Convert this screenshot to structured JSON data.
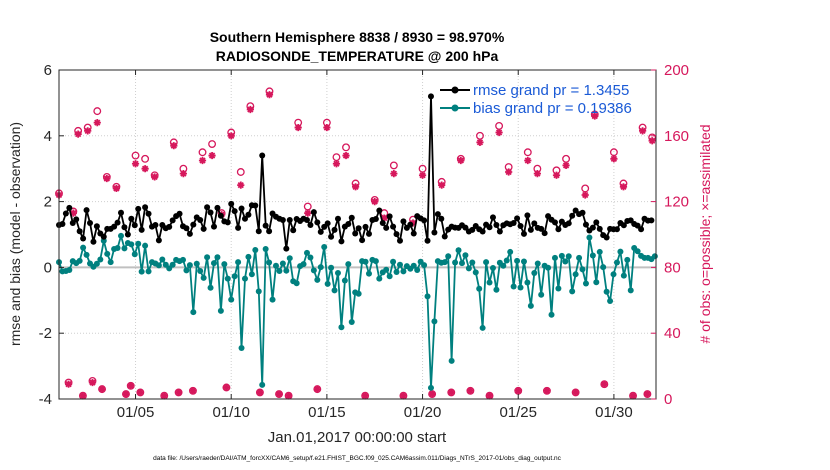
{
  "chart_data": {
    "type": "line",
    "title": "Southern Hemisphere 8838 / 8930 = 98.970%",
    "subtitle": "RADIOSONDE_TEMPERATURE @ 200 hPa",
    "xlabel": "Jan.01,2017 00:00:00 start",
    "ylabel": "rmse and bias (model - observation)",
    "y2label": "# of obs: o=possible; ×=assimilated",
    "footnote": "data file: /Users/raeder/DAI/ATM_forcXX/CAM6_setup/f.e21.FHIST_BGC.f09_025.CAM6assim.011/Diags_NTrS_2017-01/obs_diag_output.nc",
    "xlim": [
      1,
      32.2
    ],
    "ylim": [
      -4,
      6
    ],
    "y2lim": [
      0,
      200
    ],
    "x_ticks": [
      5,
      10,
      15,
      20,
      25,
      30
    ],
    "x_tick_labels": [
      "01/05",
      "01/10",
      "01/15",
      "01/20",
      "01/25",
      "01/30"
    ],
    "y_ticks": [
      -4,
      -2,
      0,
      2,
      4,
      6
    ],
    "y_tick_labels": [
      "-4",
      "-2",
      "0",
      "2",
      "4",
      "6"
    ],
    "y2_ticks": [
      0,
      40,
      80,
      120,
      160,
      200
    ],
    "y2_tick_labels": [
      "0",
      "40",
      "80",
      "120",
      "160",
      "200"
    ],
    "legend_position": "top-right",
    "colors": {
      "rmse": "#000000",
      "bias": "#00807f",
      "obs": "#d6185c",
      "zero_line": "#c0c0c0",
      "label_blue": "#1a5ad6"
    },
    "series": [
      {
        "name": "rmse grand pr = 1.3455",
        "axis": "left",
        "values": [
          1.29,
          1.32,
          1.64,
          1.81,
          1.35,
          1.46,
          1.1,
          0.88,
          1.74,
          1.35,
          0.78,
          1.25,
          1.03,
          0.93,
          1.17,
          1.17,
          1.24,
          1.36,
          1.66,
          1.22,
          1.0,
          1.48,
          1.28,
          1.78,
          1.14,
          1.83,
          1.63,
          1.24,
          1.29,
          0.82,
          1.29,
          1.19,
          1.23,
          1.43,
          1.56,
          1.63,
          1.25,
          1.19,
          1.02,
          1.3,
          1.52,
          1.44,
          1.17,
          1.83,
          1.67,
          1.24,
          1.81,
          1.57,
          1.4,
          1.37,
          1.93,
          1.71,
          1.2,
          1.79,
          1.48,
          1.6,
          1.89,
          1.88,
          1.1,
          3.4,
          1.27,
          1.1,
          1.64,
          1.54,
          1.48,
          1.44,
          0.57,
          1.44,
          1.13,
          1.47,
          1.41,
          1.48,
          1.44,
          1.29,
          1.68,
          1.37,
          1.08,
          1.23,
          1.34,
          0.93,
          1.14,
          1.48,
          0.79,
          1.24,
          1.32,
          1.51,
          1.03,
          1.19,
          0.83,
          1.23,
          1.02,
          1.44,
          1.47,
          1.73,
          1.35,
          1.2,
          1.55,
          1.24,
          1.01,
          0.81,
          1.4,
          1.2,
          1.3,
          1.03,
          1.56,
          1.49,
          1.43,
          0.81,
          5.2,
          1.06,
          1.62,
          1.48,
          0.94,
          1.15,
          1.24,
          1.21,
          1.2,
          1.28,
          1.21,
          1.09,
          1.14,
          1.26,
          1.16,
          1.09,
          1.3,
          1.22,
          1.52,
          1.29,
          1.09,
          1.28,
          1.34,
          1.31,
          1.35,
          1.49,
          1.26,
          1.02,
          1.58,
          1.14,
          1.34,
          1.2,
          1.17,
          1.04,
          1.56,
          1.45,
          1.37,
          1.16,
          1.39,
          1.29,
          1.34,
          1.57,
          1.73,
          1.62,
          1.66,
          1.3,
          1.12,
          1.21,
          1.37,
          1.17,
          0.98,
          0.91,
          1.17,
          1.16,
          1.16,
          1.35,
          1.28,
          1.41,
          1.43,
          1.32,
          1.27,
          1.16,
          1.48,
          1.42,
          1.43
        ]
      },
      {
        "name": "bias grand pr = 0.19386",
        "axis": "left",
        "values": [
          0.16,
          -0.12,
          -0.11,
          -0.08,
          0.19,
          0.13,
          0.2,
          0.6,
          0.38,
          0.12,
          0.02,
          0.11,
          0.24,
          0.81,
          0.41,
          0.16,
          0.56,
          0.59,
          0.96,
          0.58,
          0.74,
          0.7,
          0.4,
          0.72,
          -0.13,
          0.66,
          -0.12,
          0.16,
          0.12,
          0.06,
          0.24,
          0.08,
          -0.03,
          0.08,
          0.23,
          0.19,
          0.23,
          -0.09,
          0.07,
          -1.36,
          0.11,
          -0.11,
          -0.32,
          0.31,
          -0.62,
          0.13,
          0.31,
          -1.32,
          0.1,
          -0.34,
          -0.98,
          -0.27,
          0.16,
          -2.45,
          -0.34,
          0.32,
          -0.21,
          0.53,
          -0.73,
          -3.57,
          0.56,
          0.15,
          -0.98,
          0.05,
          -0.11,
          0.12,
          -0.1,
          0.28,
          -0.42,
          -0.48,
          0.04,
          0.1,
          0.44,
          0.3,
          -0.09,
          -0.38,
          0.01,
          0.62,
          -0.5,
          -0.01,
          -0.7,
          -0.17,
          -1.82,
          -0.4,
          0.1,
          -1.66,
          -0.76,
          -0.8,
          0.19,
          0.17,
          -0.19,
          0.23,
          0.19,
          -0.34,
          -0.15,
          -0.07,
          -0.27,
          0.17,
          -0.14,
          0.08,
          -0.12,
          0.04,
          -0.04,
          0.05,
          -0.08,
          0.17,
          0.07,
          -0.88,
          -3.66,
          -1.64,
          0.19,
          0.14,
          0.16,
          0.34,
          -2.84,
          0.15,
          0.52,
          0.13,
          0.37,
          -0.03,
          0.15,
          -0.15,
          -0.65,
          -1.84,
          0.16,
          -0.46,
          -0.02,
          -0.68,
          0.14,
          0.05,
          0.21,
          0.47,
          -0.58,
          0.2,
          -0.61,
          0.18,
          -0.46,
          -1.17,
          -0.17,
          0.12,
          -0.83,
          0.05,
          -0.01,
          -1.44,
          0.29,
          -0.64,
          0.35,
          0.18,
          0.34,
          -0.73,
          -0.21,
          0.29,
          -0.06,
          -0.49,
          0.91,
          0.36,
          -0.45,
          0.47,
          0.01,
          -0.74,
          -1.02,
          -0.21,
          0.15,
          0.48,
          -0.25,
          0.23,
          -0.7,
          0.59,
          0.49,
          0.35,
          0.29,
          0.29,
          0.25,
          0.34
        ]
      },
      {
        "name": "# of obs possible",
        "axis": "right",
        "marker": "circle",
        "points": [
          [
            1.0,
            125
          ],
          [
            1.5,
            10
          ],
          [
            1.75,
            114
          ],
          [
            2.0,
            163
          ],
          [
            2.25,
            2
          ],
          [
            2.5,
            165
          ],
          [
            2.75,
            11
          ],
          [
            3.0,
            175
          ],
          [
            3.25,
            6
          ],
          [
            3.5,
            135
          ],
          [
            4.0,
            129
          ],
          [
            4.5,
            3
          ],
          [
            4.75,
            8
          ],
          [
            5.0,
            148
          ],
          [
            5.25,
            4
          ],
          [
            5.5,
            146
          ],
          [
            6.0,
            136
          ],
          [
            6.5,
            2
          ],
          [
            7.0,
            156
          ],
          [
            7.25,
            4
          ],
          [
            7.5,
            140
          ],
          [
            8.0,
            5
          ],
          [
            8.5,
            150
          ],
          [
            9.0,
            155
          ],
          [
            9.5,
            113
          ],
          [
            9.75,
            7
          ],
          [
            10.0,
            162
          ],
          [
            10.5,
            138
          ],
          [
            11.0,
            178
          ],
          [
            11.5,
            4
          ],
          [
            12.0,
            187
          ],
          [
            12.5,
            3
          ],
          [
            13.0,
            2
          ],
          [
            13.5,
            168
          ],
          [
            14.0,
            117
          ],
          [
            14.5,
            6
          ],
          [
            15.0,
            168
          ],
          [
            15.5,
            147
          ],
          [
            16.0,
            153
          ],
          [
            16.5,
            131
          ],
          [
            17.0,
            2
          ],
          [
            17.5,
            121
          ],
          [
            18.0,
            113
          ],
          [
            18.5,
            142
          ],
          [
            19.0,
            2
          ],
          [
            19.5,
            109
          ],
          [
            20.0,
            140
          ],
          [
            20.5,
            3
          ],
          [
            21.0,
            132
          ],
          [
            21.5,
            4
          ],
          [
            22.0,
            146
          ],
          [
            22.5,
            5
          ],
          [
            23.0,
            160
          ],
          [
            23.5,
            2
          ],
          [
            24.0,
            166
          ],
          [
            24.5,
            141
          ],
          [
            25.0,
            5
          ],
          [
            25.5,
            150
          ],
          [
            26.0,
            140
          ],
          [
            26.5,
            5
          ],
          [
            27.0,
            139
          ],
          [
            27.5,
            146
          ],
          [
            28.0,
            4
          ],
          [
            28.5,
            128
          ],
          [
            29.0,
            173
          ],
          [
            29.5,
            9
          ],
          [
            30.0,
            150
          ],
          [
            30.5,
            131
          ],
          [
            31.0,
            2
          ],
          [
            31.5,
            165
          ],
          [
            31.75,
            3
          ],
          [
            32.0,
            159
          ]
        ]
      },
      {
        "name": "# of obs assimilated",
        "axis": "right",
        "marker": "x",
        "points": [
          [
            1.0,
            124
          ],
          [
            1.5,
            9
          ],
          [
            1.75,
            113
          ],
          [
            2.0,
            161
          ],
          [
            2.25,
            2
          ],
          [
            2.5,
            163
          ],
          [
            2.75,
            10
          ],
          [
            3.0,
            168
          ],
          [
            3.25,
            6
          ],
          [
            3.5,
            134
          ],
          [
            4.0,
            128
          ],
          [
            4.5,
            3
          ],
          [
            4.75,
            8
          ],
          [
            5.0,
            143
          ],
          [
            5.25,
            4
          ],
          [
            5.5,
            140
          ],
          [
            6.0,
            135
          ],
          [
            6.5,
            2
          ],
          [
            7.0,
            154
          ],
          [
            7.25,
            4
          ],
          [
            7.5,
            137
          ],
          [
            8.0,
            5
          ],
          [
            8.5,
            145
          ],
          [
            9.0,
            148
          ],
          [
            9.5,
            112
          ],
          [
            9.75,
            7
          ],
          [
            10.0,
            160
          ],
          [
            10.5,
            130
          ],
          [
            11.0,
            176
          ],
          [
            11.5,
            4
          ],
          [
            12.0,
            185
          ],
          [
            12.5,
            3
          ],
          [
            13.0,
            2
          ],
          [
            13.5,
            165
          ],
          [
            14.0,
            113
          ],
          [
            14.5,
            6
          ],
          [
            15.0,
            165
          ],
          [
            15.5,
            143
          ],
          [
            16.0,
            148
          ],
          [
            16.5,
            129
          ],
          [
            17.0,
            2
          ],
          [
            17.5,
            120
          ],
          [
            18.0,
            110
          ],
          [
            18.5,
            137
          ],
          [
            19.0,
            2
          ],
          [
            19.5,
            107
          ],
          [
            20.0,
            136
          ],
          [
            20.5,
            3
          ],
          [
            21.0,
            130
          ],
          [
            21.5,
            4
          ],
          [
            22.0,
            145
          ],
          [
            22.5,
            5
          ],
          [
            23.0,
            156
          ],
          [
            23.5,
            2
          ],
          [
            24.0,
            162
          ],
          [
            24.5,
            138
          ],
          [
            25.0,
            5
          ],
          [
            25.5,
            145
          ],
          [
            26.0,
            137
          ],
          [
            26.5,
            5
          ],
          [
            27.0,
            136
          ],
          [
            27.5,
            142
          ],
          [
            28.0,
            4
          ],
          [
            28.5,
            124
          ],
          [
            29.0,
            172
          ],
          [
            29.5,
            9
          ],
          [
            30.0,
            146
          ],
          [
            30.5,
            129
          ],
          [
            31.0,
            2
          ],
          [
            31.5,
            163
          ],
          [
            31.75,
            3
          ],
          [
            32.0,
            157
          ]
        ]
      }
    ]
  }
}
